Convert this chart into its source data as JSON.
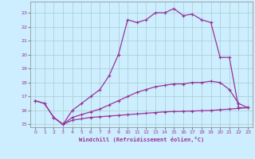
{
  "xlabel": "Windchill (Refroidissement éolien,°C)",
  "background_color": "#cceeff",
  "grid_color": "#aacccc",
  "line_color": "#993399",
  "xlim": [
    -0.5,
    23.5
  ],
  "ylim": [
    14.8,
    23.8
  ],
  "yticks": [
    15,
    16,
    17,
    18,
    19,
    20,
    21,
    22,
    23
  ],
  "xticks": [
    0,
    1,
    2,
    3,
    4,
    5,
    6,
    7,
    8,
    9,
    10,
    11,
    12,
    13,
    14,
    15,
    16,
    17,
    18,
    19,
    20,
    21,
    22,
    23
  ],
  "line1_x": [
    0,
    1,
    2,
    3,
    4,
    5,
    6,
    7,
    8,
    9,
    10,
    11,
    12,
    13,
    14,
    15,
    16,
    17,
    18,
    19,
    20,
    21,
    22,
    23
  ],
  "line1_y": [
    16.7,
    16.5,
    15.5,
    15.0,
    16.0,
    16.5,
    17.0,
    17.5,
    18.5,
    20.0,
    22.5,
    22.3,
    22.5,
    23.0,
    23.0,
    23.3,
    22.8,
    22.9,
    22.5,
    22.3,
    19.8,
    19.8,
    16.2,
    16.2
  ],
  "line2_x": [
    0,
    1,
    2,
    3,
    4,
    5,
    6,
    7,
    8,
    9,
    10,
    11,
    12,
    13,
    14,
    15,
    16,
    17,
    18,
    19,
    20,
    21,
    22,
    23
  ],
  "line2_y": [
    16.7,
    16.5,
    15.5,
    15.0,
    15.5,
    15.7,
    15.9,
    16.1,
    16.4,
    16.7,
    17.0,
    17.3,
    17.5,
    17.7,
    17.8,
    17.9,
    17.9,
    18.0,
    18.0,
    18.1,
    18.0,
    17.5,
    16.5,
    16.2
  ],
  "line3_x": [
    2,
    3,
    4,
    5,
    6,
    7,
    8,
    9,
    10,
    11,
    12,
    13,
    14,
    15,
    16,
    17,
    18,
    19,
    20,
    21,
    22,
    23
  ],
  "line3_y": [
    15.5,
    15.0,
    15.3,
    15.4,
    15.5,
    15.55,
    15.6,
    15.65,
    15.7,
    15.75,
    15.8,
    15.85,
    15.9,
    15.92,
    15.94,
    15.96,
    15.98,
    16.0,
    16.05,
    16.1,
    16.15,
    16.2
  ]
}
